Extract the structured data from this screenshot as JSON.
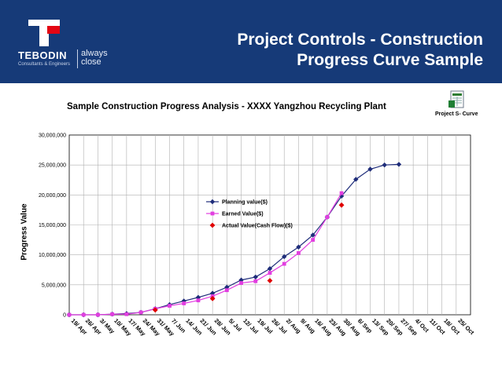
{
  "header": {
    "logo_name": "TEBODIN",
    "logo_sub": "Consultants & Engineers",
    "logo_tag_1": "always",
    "logo_tag_2": "close",
    "title_line1": "Project Controls - Construction",
    "title_line2": "Progress Curve Sample"
  },
  "attachment": {
    "label": "Project S- Curve",
    "icon": "spreadsheet-icon"
  },
  "colors": {
    "banner": "#163a78",
    "planning": "#1f2d7a",
    "earned": "#e23ee0",
    "actual": "#e00000"
  },
  "chart_data": {
    "type": "line",
    "title": "Sample Construction Progress Analysis - XXXX  Yangzhou Recycling Plant",
    "ylabel": "Progress Value",
    "xlabel": "",
    "ylim": [
      0,
      30000000
    ],
    "yticks": [
      "0",
      "5,000,000",
      "10,000,000",
      "15,000,000",
      "20,000,000",
      "25,000,000",
      "30,000,000"
    ],
    "categories": [
      "19/ Apr",
      "26/ Apr",
      "3/ May",
      "10/ May",
      "17/ May",
      "24/ May",
      "31/ May",
      "7/ Jun",
      "14/ Jun",
      "21/ Jun",
      "28/ Jun",
      "5/ Jul",
      "12/ Jul",
      "19/ Jul",
      "26/ Jul",
      "2/ Aug",
      "9/ Aug",
      "16/ Aug",
      "23/ Aug",
      "30/ Aug",
      "6/ Sep",
      "13/ Sep",
      "20/ Sep",
      "27/ Sep",
      "4/ Oct",
      "11/ Oct",
      "18/ Oct",
      "25/ Oct"
    ],
    "legend_position": "center",
    "grid": true,
    "series": [
      {
        "name": "Planning value($)",
        "marker": "diamond",
        "values": [
          0,
          0,
          0,
          100000,
          200000,
          400000,
          1000000,
          1700000,
          2300000,
          2900000,
          3600000,
          4600000,
          5800000,
          6300000,
          7700000,
          9700000,
          11300000,
          13300000,
          16300000,
          19800000,
          22600000,
          24300000,
          25000000,
          25100000,
          null,
          null,
          null,
          null
        ]
      },
      {
        "name": "Earned Value($)",
        "marker": "square",
        "values": [
          0,
          0,
          0,
          100000,
          100000,
          400000,
          1000000,
          1500000,
          1900000,
          2400000,
          3100000,
          4100000,
          5300000,
          5600000,
          7000000,
          8500000,
          10300000,
          12500000,
          16300000,
          20300000,
          null,
          null,
          null,
          null,
          null,
          null,
          null,
          null
        ]
      },
      {
        "name": "Actual Value(Cash Flow)($)",
        "marker": "diamond",
        "values": [
          null,
          null,
          null,
          null,
          null,
          null,
          800000,
          null,
          null,
          null,
          2700000,
          null,
          null,
          null,
          5700000,
          null,
          null,
          null,
          null,
          18300000,
          null,
          null,
          null,
          null,
          null,
          null,
          null,
          null
        ]
      }
    ]
  }
}
